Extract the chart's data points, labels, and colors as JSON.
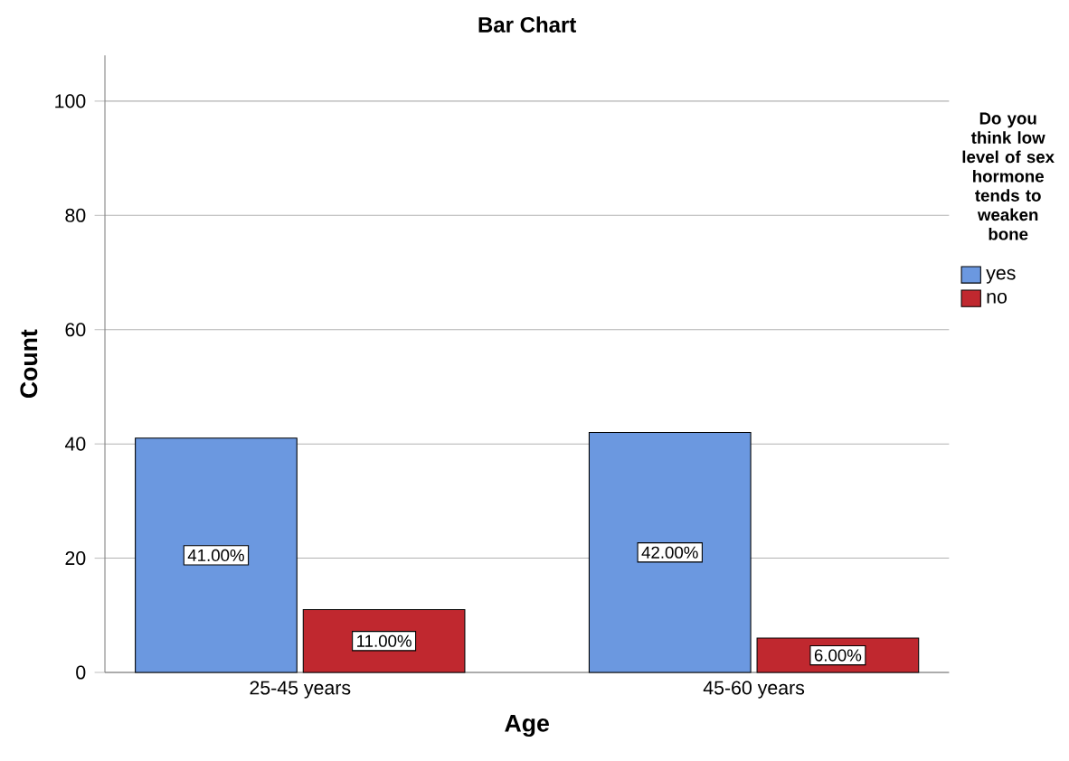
{
  "chart_data": {
    "type": "bar",
    "title": "Bar Chart",
    "xlabel": "Age",
    "ylabel": "Count",
    "legend_title": "Do you think low level of sex hormone tends to weaken bone",
    "categories": [
      "25-45 years",
      "45-60 years"
    ],
    "series": [
      {
        "name": "yes",
        "color": "#6b98e0",
        "values": [
          41,
          42
        ],
        "value_labels": [
          "41.00%",
          "42.00%"
        ]
      },
      {
        "name": "no",
        "color": "#c0282f",
        "values": [
          11,
          6
        ],
        "value_labels": [
          "11.00%",
          "6.00%"
        ]
      }
    ],
    "ylim": [
      0,
      108
    ],
    "yticks": [
      0,
      20,
      40,
      60,
      80,
      100
    ],
    "grid": "y",
    "legend": "right"
  }
}
